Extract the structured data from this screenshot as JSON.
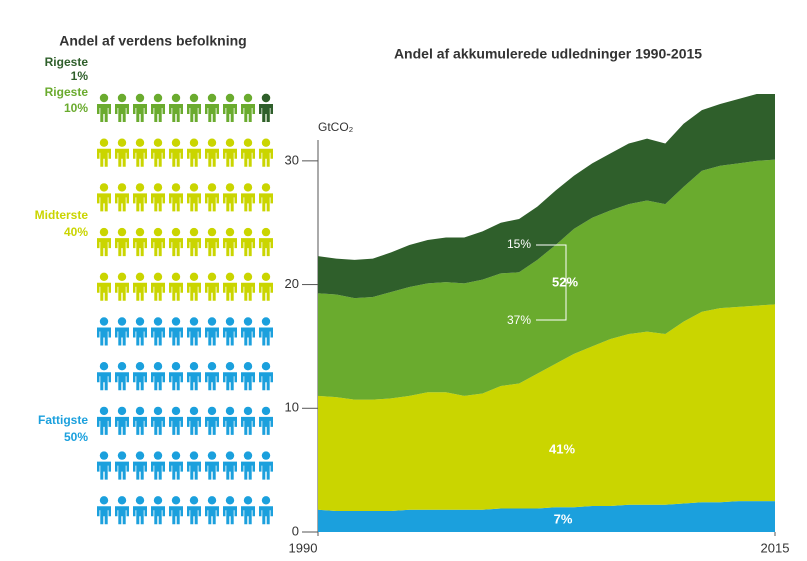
{
  "chart_data": [
    {
      "type": "pictogram",
      "title": "Andel af verdens befolkning",
      "groups": [
        {
          "name": "Rigeste",
          "value": 1,
          "value_label": "1%",
          "color": "#2f5f2b"
        },
        {
          "name": "Rigeste",
          "value": 10,
          "value_label": "10%",
          "color": "#6aab2e"
        },
        {
          "name": "Midterste",
          "value": 40,
          "value_label": "40%",
          "color": "#cad500"
        },
        {
          "name": "Fattigste",
          "value": 50,
          "value_label": "50%",
          "color": "#1ba0dd"
        }
      ]
    },
    {
      "type": "stacked_area",
      "title": "Andel af akkumulerede udledninger 1990-2015",
      "y_label": "GtCO₂",
      "x": [
        1990,
        1991,
        1992,
        1993,
        1994,
        1995,
        1996,
        1997,
        1998,
        1999,
        2000,
        2001,
        2002,
        2003,
        2004,
        2005,
        2006,
        2007,
        2008,
        2009,
        2010,
        2011,
        2012,
        2013,
        2014,
        2015
      ],
      "xlim": [
        1990,
        2015
      ],
      "xticks": [
        1990,
        2015
      ],
      "ylim": [
        0,
        35
      ],
      "yticks": [
        0,
        10,
        20,
        30
      ],
      "series": [
        {
          "color": "#1ba0dd",
          "values": [
            1.8,
            1.7,
            1.7,
            1.7,
            1.7,
            1.8,
            1.8,
            1.8,
            1.8,
            1.8,
            1.9,
            1.9,
            1.9,
            2.0,
            2.0,
            2.1,
            2.1,
            2.2,
            2.2,
            2.2,
            2.3,
            2.4,
            2.4,
            2.5,
            2.5,
            2.5
          ]
        },
        {
          "color": "#cad500",
          "values": [
            9.2,
            9.2,
            9.0,
            9.0,
            9.1,
            9.2,
            9.5,
            9.5,
            9.2,
            9.4,
            9.9,
            10.1,
            10.9,
            11.6,
            12.4,
            12.9,
            13.5,
            13.8,
            14.0,
            13.8,
            14.7,
            15.4,
            15.7,
            15.7,
            15.8,
            15.9
          ]
        },
        {
          "color": "#6aab2e",
          "values": [
            8.3,
            8.3,
            8.2,
            8.3,
            8.6,
            8.8,
            8.8,
            8.9,
            9.1,
            9.2,
            9.1,
            9.0,
            9.2,
            9.6,
            10.1,
            10.4,
            10.4,
            10.5,
            10.6,
            10.5,
            10.9,
            11.4,
            11.5,
            11.6,
            11.7,
            11.7
          ]
        },
        {
          "color": "#2f5f2b",
          "values": [
            3.0,
            2.9,
            3.1,
            3.1,
            3.2,
            3.4,
            3.5,
            3.6,
            3.7,
            3.9,
            4.1,
            4.3,
            4.3,
            4.4,
            4.3,
            4.4,
            4.6,
            4.9,
            5.0,
            4.9,
            5.1,
            4.9,
            5.0,
            5.2,
            5.4,
            5.3
          ]
        }
      ],
      "annotations": [
        "15%",
        "37%",
        "52%",
        "41%",
        "7%"
      ]
    }
  ]
}
